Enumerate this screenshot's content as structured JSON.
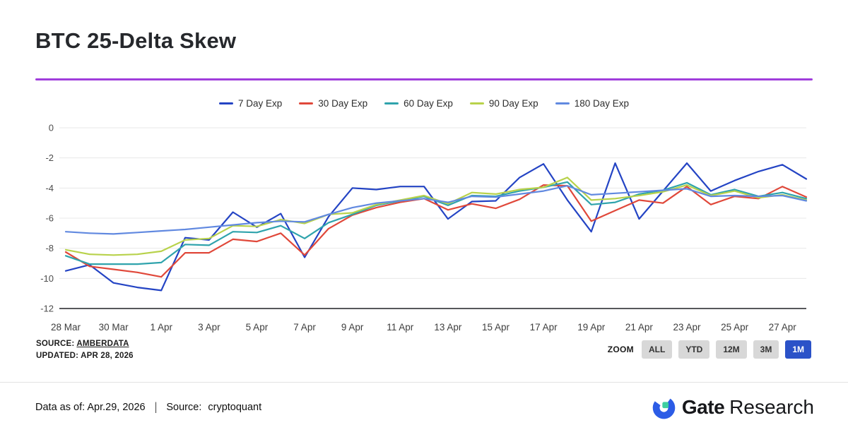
{
  "page": {
    "title": "BTC 25-Delta Skew"
  },
  "divider_color": "#a03ddb",
  "chart_data": {
    "type": "line",
    "title": "BTC 25-Delta Skew",
    "grid": true,
    "legend_position": "top-center",
    "ylim": [
      -12,
      0
    ],
    "yticks": [
      0,
      -2,
      -4,
      -6,
      -8,
      -10,
      -12
    ],
    "x_tick_every": 2,
    "x": [
      "28 Mar",
      "29 Mar",
      "30 Mar",
      "31 Mar",
      "1 Apr",
      "2 Apr",
      "3 Apr",
      "4 Apr",
      "5 Apr",
      "6 Apr",
      "7 Apr",
      "8 Apr",
      "9 Apr",
      "10 Apr",
      "11 Apr",
      "12 Apr",
      "13 Apr",
      "14 Apr",
      "15 Apr",
      "16 Apr",
      "17 Apr",
      "18 Apr",
      "19 Apr",
      "20 Apr",
      "21 Apr",
      "22 Apr",
      "23 Apr",
      "24 Apr",
      "25 Apr",
      "26 Apr",
      "27 Apr",
      "28 Apr"
    ],
    "series": [
      {
        "name": "7 Day Exp",
        "color": "#2444c4",
        "values": [
          -9.5,
          -9.1,
          -10.3,
          -10.6,
          -10.8,
          -7.3,
          -7.45,
          -5.6,
          -6.6,
          -5.7,
          -8.6,
          -5.9,
          -4.0,
          -4.1,
          -3.9,
          -3.9,
          -6.05,
          -4.9,
          -4.85,
          -3.3,
          -2.4,
          -4.8,
          -6.9,
          -2.35,
          -6.05,
          -4.2,
          -2.35,
          -4.2,
          -3.5,
          -2.9,
          -2.45,
          -3.4
        ]
      },
      {
        "name": "30 Day Exp",
        "color": "#e0483a",
        "values": [
          -8.25,
          -9.2,
          -9.4,
          -9.6,
          -9.9,
          -8.3,
          -8.3,
          -7.4,
          -7.55,
          -7.0,
          -8.45,
          -6.7,
          -5.8,
          -5.3,
          -4.95,
          -4.7,
          -5.45,
          -5.05,
          -5.35,
          -4.75,
          -3.8,
          -3.85,
          -6.2,
          -5.5,
          -4.8,
          -5.0,
          -3.9,
          -5.1,
          -4.55,
          -4.7,
          -3.9,
          -4.6
        ]
      },
      {
        "name": "60 Day Exp",
        "color": "#2fa3ac",
        "values": [
          -8.5,
          -9.05,
          -9.05,
          -9.05,
          -8.95,
          -7.75,
          -7.8,
          -6.9,
          -6.95,
          -6.5,
          -7.35,
          -6.3,
          -5.75,
          -5.15,
          -4.85,
          -4.55,
          -5.15,
          -4.5,
          -4.55,
          -4.2,
          -3.95,
          -3.6,
          -5.1,
          -4.95,
          -4.4,
          -4.15,
          -3.65,
          -4.45,
          -4.1,
          -4.55,
          -4.3,
          -4.7
        ]
      },
      {
        "name": "90 Day Exp",
        "color": "#b8d24b",
        "values": [
          -8.1,
          -8.4,
          -8.45,
          -8.4,
          -8.2,
          -7.45,
          -7.35,
          -6.5,
          -6.55,
          -6.1,
          -6.35,
          -5.75,
          -5.65,
          -5.1,
          -4.8,
          -4.5,
          -5.05,
          -4.3,
          -4.4,
          -4.1,
          -3.95,
          -3.3,
          -4.8,
          -4.7,
          -4.5,
          -4.25,
          -3.8,
          -4.5,
          -4.2,
          -4.65,
          -4.45,
          -4.8
        ]
      },
      {
        "name": "180 Day Exp",
        "color": "#6189e0",
        "values": [
          -6.9,
          -7.0,
          -7.05,
          -6.95,
          -6.85,
          -6.75,
          -6.6,
          -6.45,
          -6.3,
          -6.2,
          -6.25,
          -5.75,
          -5.3,
          -5.0,
          -4.85,
          -4.7,
          -4.95,
          -4.55,
          -4.6,
          -4.4,
          -4.2,
          -3.85,
          -4.45,
          -4.35,
          -4.25,
          -4.15,
          -4.05,
          -4.55,
          -4.5,
          -4.55,
          -4.5,
          -4.85
        ]
      }
    ]
  },
  "chart_source": {
    "source_label": "SOURCE:",
    "source_link": "AMBERDATA",
    "updated": "UPDATED: APR 28, 2026"
  },
  "zoom": {
    "label": "ZOOM",
    "active_color": "#2b52c8",
    "buttons": [
      {
        "label": "ALL",
        "active": false
      },
      {
        "label": "YTD",
        "active": false
      },
      {
        "label": "12M",
        "active": false
      },
      {
        "label": "3M",
        "active": false
      },
      {
        "label": "1M",
        "active": true
      }
    ]
  },
  "footer": {
    "data_as_of": "Data as of: Apr.29, 2026",
    "separator": "|",
    "source_label": "Source:",
    "source_value": "cryptoquant"
  },
  "brand": {
    "name_bold": "Gate",
    "name_regular": "Research",
    "icon_blue": "#2c5ce6",
    "icon_green": "#3ecfa0"
  }
}
